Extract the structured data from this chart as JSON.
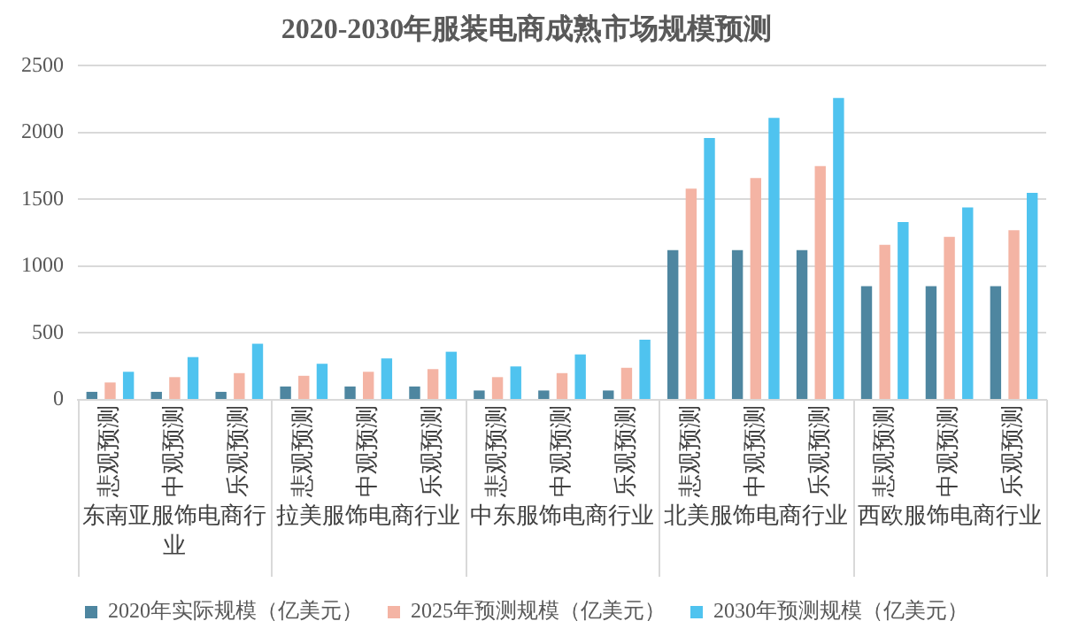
{
  "chart_data": {
    "type": "bar",
    "title": "2020-2030年服装电商成熟市场规模预测",
    "categories": [
      "悲观预测",
      "中观预测",
      "乐观预测",
      "悲观预测",
      "中观预测",
      "乐观预测",
      "悲观预测",
      "中观预测",
      "乐观预测",
      "悲观预测",
      "中观预测",
      "乐观预测",
      "悲观预测",
      "中观预测",
      "乐观预测"
    ],
    "annotations": [
      "东南亚服饰电商行业",
      "拉美服饰电商行业",
      "中东服饰电商行业",
      "北美服饰电商行业",
      "西欧服饰电商行业"
    ],
    "series": [
      {
        "name": "2020年实际规模（亿美元）",
        "color": "#4e86a0",
        "values": [
          60,
          60,
          60,
          100,
          100,
          100,
          70,
          70,
          70,
          1120,
          1120,
          1120,
          850,
          850,
          850
        ]
      },
      {
        "name": "2025年预测规模（亿美元）",
        "color": "#f4b4a4",
        "values": [
          130,
          170,
          200,
          180,
          210,
          230,
          170,
          200,
          240,
          1580,
          1660,
          1750,
          1160,
          1220,
          1270
        ]
      },
      {
        "name": "2030年预测规模（亿美元）",
        "color": "#4fc3ef",
        "values": [
          210,
          320,
          420,
          270,
          310,
          360,
          250,
          340,
          450,
          1960,
          2110,
          2260,
          1330,
          1440,
          1550
        ]
      }
    ],
    "ylim": [
      0,
      2500
    ],
    "yticks": [
      0,
      500,
      1000,
      1500,
      2000,
      2500
    ],
    "grid": "y",
    "legend": "bottom"
  }
}
